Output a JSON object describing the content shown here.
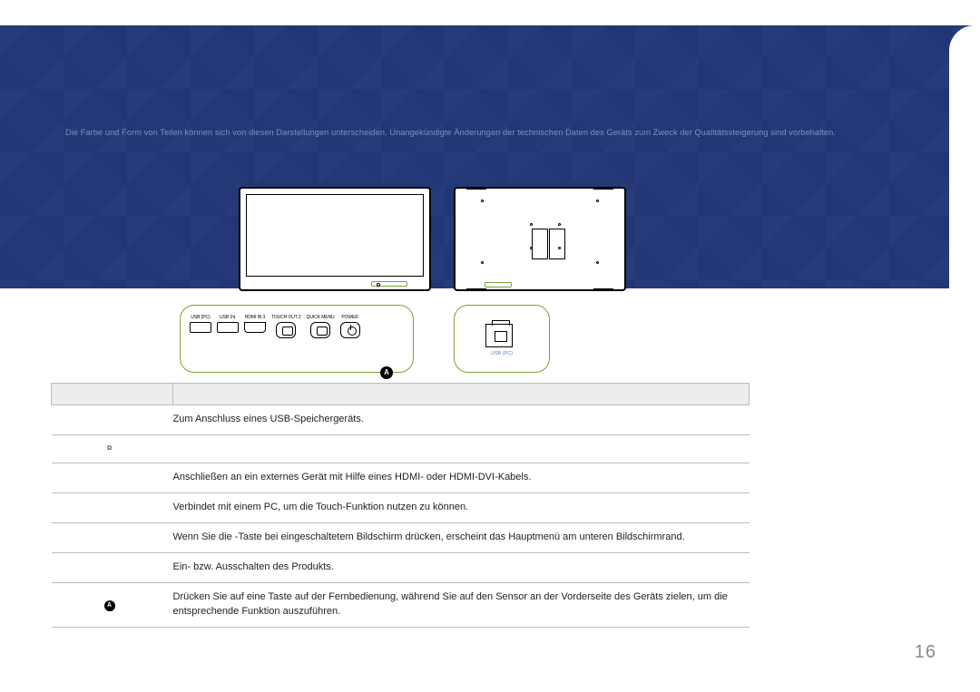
{
  "colors": {
    "band_bg": "#243878",
    "band_text": "#7a90c4",
    "accent_green": "#7aa23b",
    "table_header_bg": "#ededed",
    "table_border": "#bcbcbc",
    "page_num": "#8b8b8b"
  },
  "header": {
    "disclaimer": "Die Farbe und Form von Teilen können sich von diesen Darstellungen unterscheiden. Unangekündigte Änderungen der technischen Daten des Geräts zum Zweck der Qualitätssteigerung sind vorbehalten."
  },
  "port_panel": {
    "ports": [
      {
        "label": "USB (PC)"
      },
      {
        "label": "USB 3↯"
      },
      {
        "label": "HDMI IN 3"
      },
      {
        "label": "TOUCH OUT 2"
      },
      {
        "label": "QUICK MENU"
      },
      {
        "label": "POWER"
      }
    ],
    "badge": "A"
  },
  "usb_panel": {
    "label": "USB (PC)"
  },
  "table": {
    "rows": [
      {
        "label": "",
        "desc": "Zum Anschluss eines USB-Speichergeräts."
      },
      {
        "label": "¤",
        "desc": ""
      },
      {
        "label": "",
        "desc": "Anschließen an ein externes Gerät mit Hilfe eines HDMI- oder HDMI-DVI-Kabels."
      },
      {
        "label": "",
        "desc": "Verbindet mit einem PC, um die Touch-Funktion nutzen zu können."
      },
      {
        "label": "",
        "desc": "Wenn Sie die -Taste bei eingeschaltetem Bildschirm drücken, erscheint das Hauptmenü am unteren Bildschirmrand."
      },
      {
        "label": "",
        "desc": "Ein- bzw. Ausschalten des Produkts."
      },
      {
        "label": "A",
        "badge": true,
        "desc": "Drücken Sie auf eine Taste auf der Fernbedienung, während Sie auf den Sensor an der Vorderseite des Geräts zielen, um die entsprechende Funktion auszuführen."
      }
    ]
  },
  "page_number": "16"
}
